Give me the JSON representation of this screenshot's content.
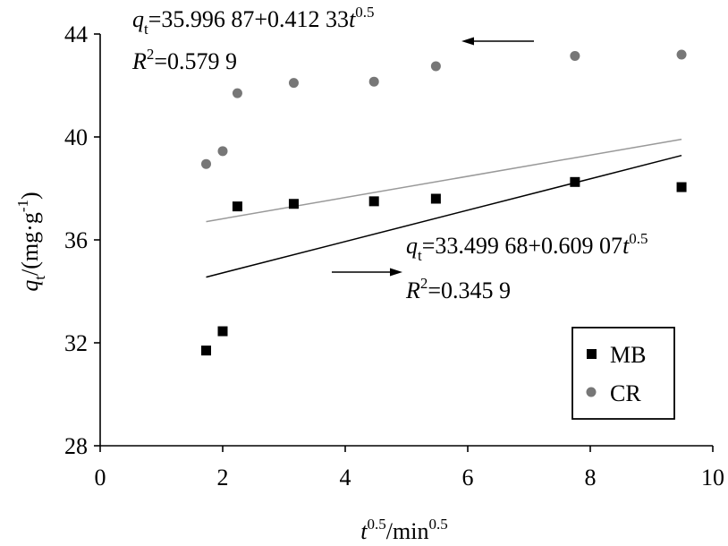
{
  "chart_data": {
    "type": "scatter",
    "x_axis": {
      "label_base": "t",
      "label_sup": "0.5",
      "label_mid": "/min",
      "label_sup2": "0.5",
      "min": 0,
      "max": 10,
      "ticks": [
        0,
        2,
        4,
        6,
        8,
        10
      ]
    },
    "y_axis": {
      "label_q": "q",
      "label_sub": "t",
      "label_rest": "/(mg·g",
      "label_sup": "-1",
      "label_close": ")",
      "min": 28,
      "max": 44,
      "ticks": [
        28,
        32,
        36,
        40,
        44
      ]
    },
    "grid": false,
    "legend_position": "bottom-right",
    "series": [
      {
        "name": "MB",
        "marker": "square",
        "color": "#000000",
        "x": [
          1.73,
          2.0,
          2.24,
          3.16,
          4.47,
          5.48,
          7.75,
          9.49
        ],
        "y": [
          31.7,
          32.45,
          37.3,
          37.4,
          37.5,
          37.6,
          38.25,
          38.05
        ],
        "fit": {
          "intercept": 33.49968,
          "slope": 0.60907,
          "x_range": [
            1.73,
            9.49
          ],
          "color": "#000000"
        }
      },
      {
        "name": "CR",
        "marker": "circle",
        "color": "#777777",
        "x": [
          1.73,
          2.0,
          2.24,
          3.16,
          4.47,
          5.48,
          7.75,
          9.49
        ],
        "y": [
          38.95,
          39.45,
          41.7,
          42.1,
          42.15,
          42.75,
          43.15,
          43.2
        ],
        "fit": {
          "intercept": 35.99687,
          "slope": 0.41233,
          "x_range": [
            1.73,
            9.49
          ],
          "color": "#999999"
        }
      }
    ],
    "annotations": {
      "cr_eq": {
        "q": "q",
        "sub": "t",
        "rest": "=35.996 87+0.412 33",
        "t": "t",
        "sup": "0.5"
      },
      "cr_r2": {
        "r": "R",
        "sup": "2",
        "rest": "=0.579 9"
      },
      "mb_eq": {
        "q": "q",
        "sub": "t",
        "rest": "=33.499 68+0.609 07",
        "t": "t",
        "sup": "0.5"
      },
      "mb_r2": {
        "r": "R",
        "sup": "2",
        "rest": "=0.345 9"
      }
    }
  }
}
